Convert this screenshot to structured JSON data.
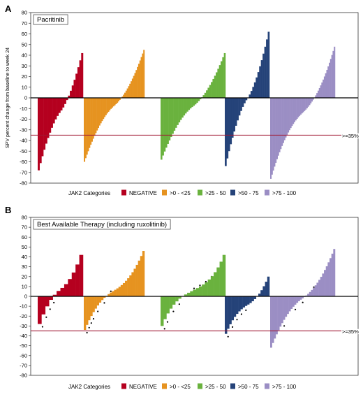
{
  "chart_data": [
    {
      "panel_letter": "A",
      "title": "Pacritinib",
      "type": "bar",
      "ylabel": "SPV percent change from baseline to week 24",
      "ylim": [
        -80,
        80
      ],
      "yticks": [
        80,
        70,
        60,
        50,
        40,
        30,
        20,
        10,
        0,
        -10,
        -20,
        -30,
        -40,
        -50,
        -60,
        -70,
        -80
      ],
      "reference_line": {
        "value": -35,
        "label": ">=35%"
      },
      "legend_title": "JAK2 Categories",
      "legend_position": "bottom",
      "series": [
        {
          "name": "NEGATIVE",
          "color": "#b5001f",
          "start": -68,
          "end": 42,
          "n": 24,
          "curve": 1.2,
          "markers": []
        },
        {
          "name": ">0 - <25",
          "color": "#e69320",
          "start": -60,
          "end": 45,
          "n": 48,
          "curve": 1.1,
          "markers": []
        },
        {
          "name": ">25 - 50",
          "color": "#6ab23e",
          "start": -58,
          "end": 42,
          "n": 40,
          "curve": 1.1,
          "markers": []
        },
        {
          "name": ">50 - 75",
          "color": "#254379",
          "start": -64,
          "end": 62,
          "n": 26,
          "curve": 1.2,
          "markers": []
        },
        {
          "name": ">75 - 100",
          "color": "#9b8ec4",
          "start": -76,
          "end": 48,
          "n": 52,
          "curve": 1.0,
          "markers": []
        }
      ]
    },
    {
      "panel_letter": "B",
      "title": "Best Available Therapy (including ruxolitinib)",
      "type": "bar",
      "ylabel": "",
      "ylim": [
        -80,
        80
      ],
      "yticks": [
        80,
        70,
        60,
        50,
        40,
        30,
        20,
        10,
        0,
        -10,
        -20,
        -30,
        -40,
        -50,
        -60,
        -70,
        -80
      ],
      "reference_line": {
        "value": -35,
        "label": ">=35%"
      },
      "legend_title": "JAK2 Categories",
      "legend_position": "bottom",
      "series": [
        {
          "name": "NEGATIVE",
          "color": "#b5001f",
          "start": -28,
          "end": 42,
          "n": 12,
          "curve": 1.0,
          "markers": [
            0,
            1,
            2,
            3
          ]
        },
        {
          "name": ">0 - <25",
          "color": "#e69320",
          "start": -34,
          "end": 46,
          "n": 28,
          "curve": 0.9,
          "markers": [
            0,
            1,
            2,
            3,
            5,
            8,
            11
          ]
        },
        {
          "name": ">25 - 50",
          "color": "#6ab23e",
          "start": -30,
          "end": 42,
          "n": 22,
          "curve": 0.7,
          "markers": [
            0,
            1,
            3,
            5,
            10,
            12,
            14,
            16
          ]
        },
        {
          "name": ">50 - 75",
          "color": "#254379",
          "start": -38,
          "end": 20,
          "n": 20,
          "curve": 0.9,
          "markers": [
            0,
            2,
            4,
            6,
            8
          ]
        },
        {
          "name": ">75 - 100",
          "color": "#9b8ec4",
          "start": -52,
          "end": 48,
          "n": 35,
          "curve": 1.0,
          "markers": [
            6,
            12,
            16,
            22,
            28
          ]
        }
      ]
    }
  ]
}
